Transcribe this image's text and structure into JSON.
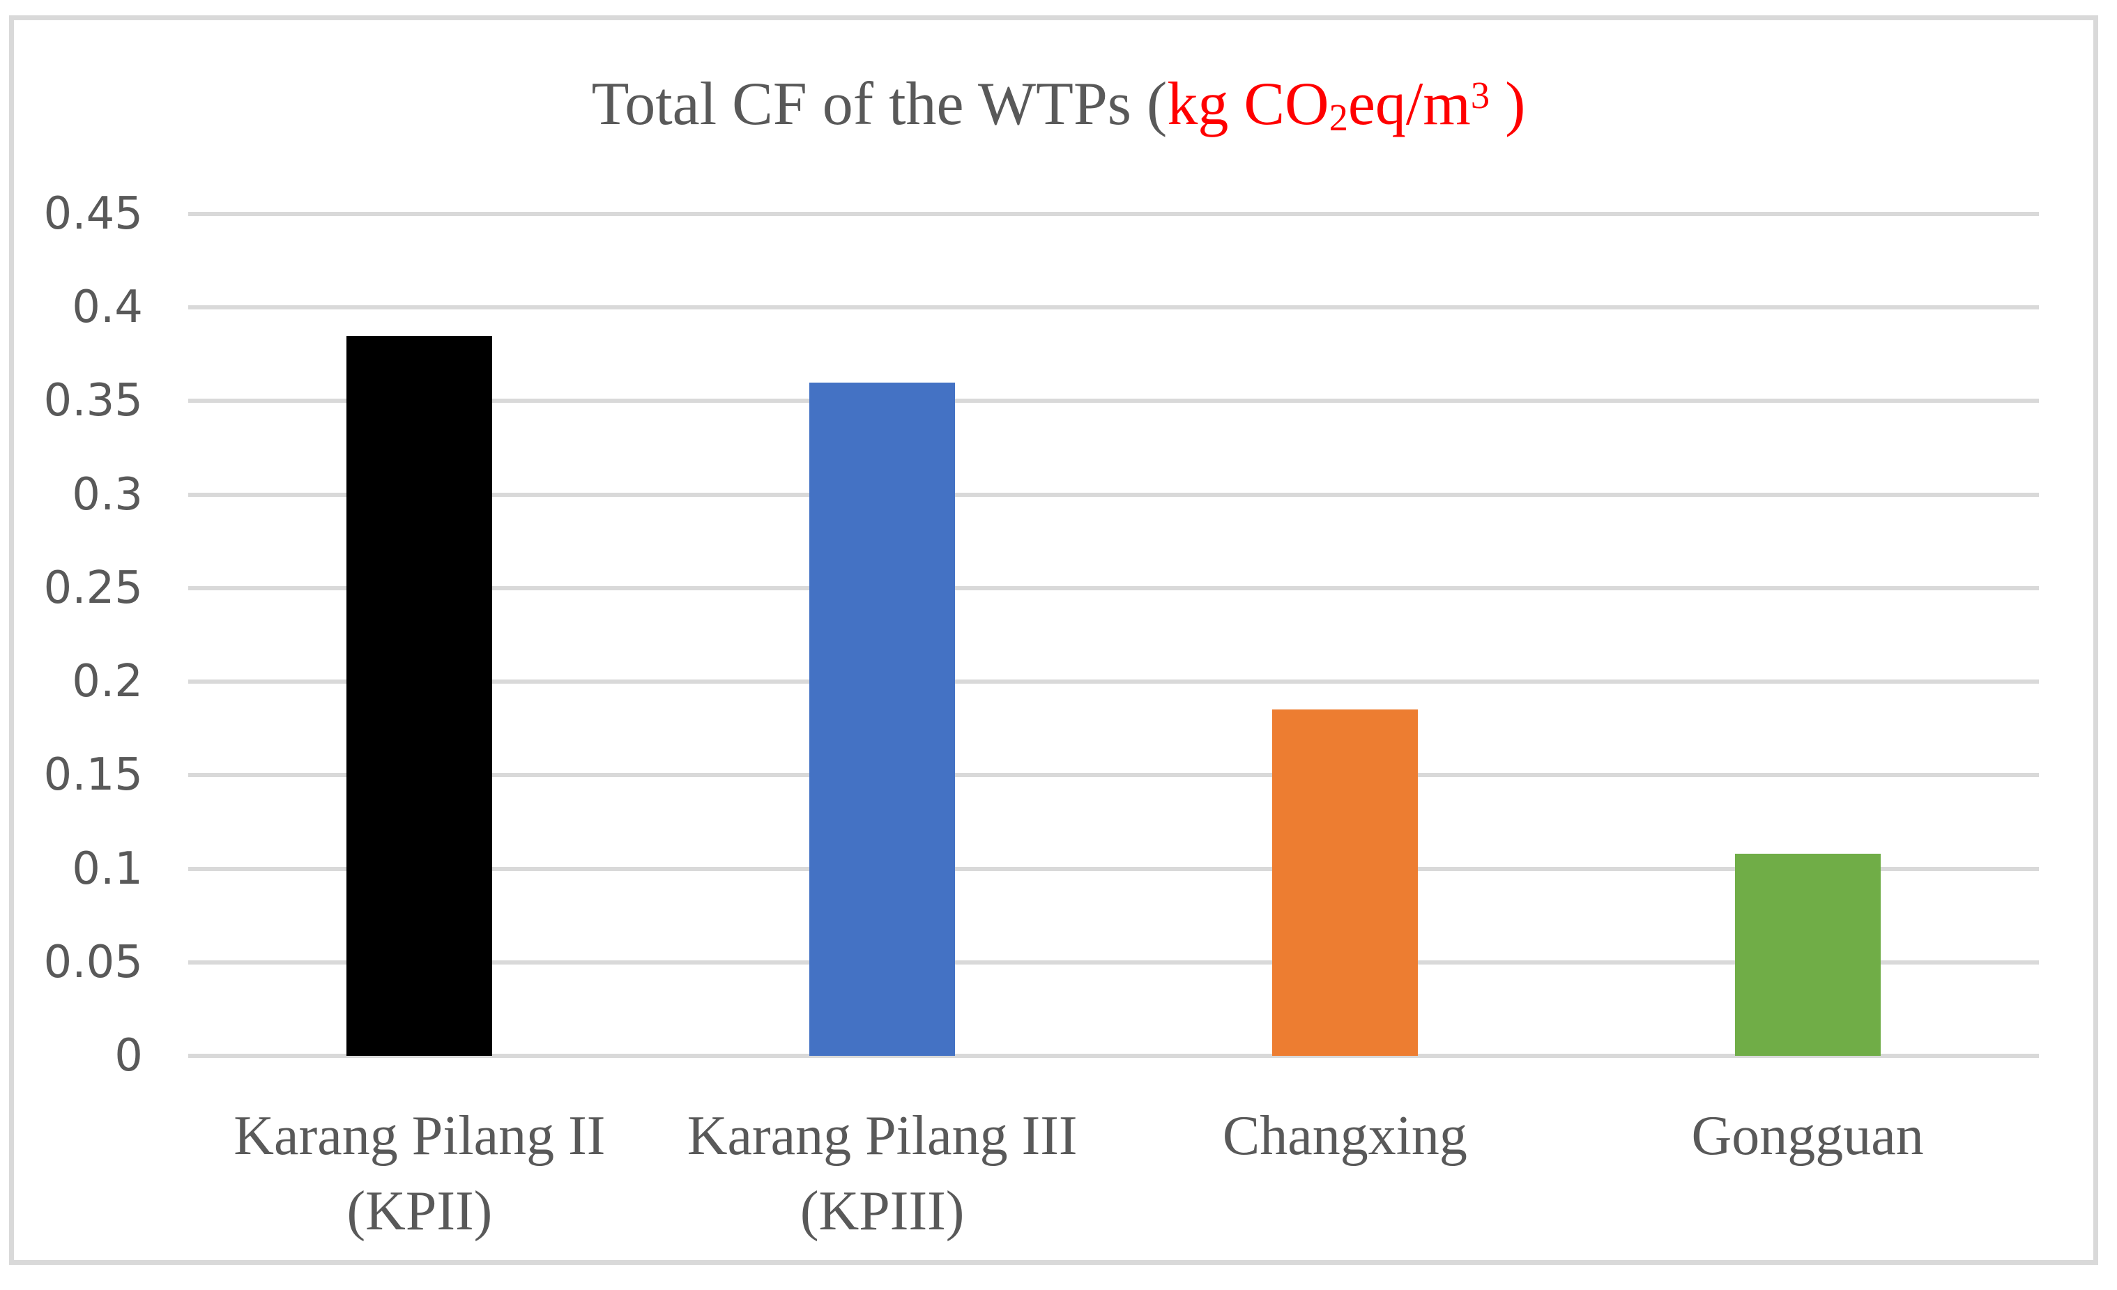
{
  "chart_data": {
    "type": "bar",
    "title": "Total CF of the WTPs (kg CO2eq/m3 )",
    "title_segments": {
      "label": "Total CF of the WTPs (",
      "unit_prefix": "kg CO",
      "unit_subscript": "2",
      "unit_middle": "eq/m",
      "unit_superscript": "3",
      "unit_close": " )"
    },
    "categories": [
      "Karang Pilang II\n(KPII)",
      "Karang Pilang III\n(KPIII)",
      "Changxing",
      "Gongguan"
    ],
    "values": [
      0.385,
      0.36,
      0.185,
      0.108
    ],
    "bar_colors": [
      "#000000",
      "#4472C4",
      "#ED7D31",
      "#70AD47"
    ],
    "ylim": [
      0,
      0.45
    ],
    "ytick_step": 0.05,
    "yticks": [
      0,
      0.05,
      0.1,
      0.15,
      0.2,
      0.25,
      0.3,
      0.35,
      0.4,
      0.45
    ],
    "ytick_labels": [
      "0",
      "0.05",
      "0.1",
      "0.15",
      "0.2",
      "0.25",
      "0.3",
      "0.35",
      "0.4",
      "0.45"
    ],
    "grid": true,
    "legend": "none",
    "xlabel": "",
    "ylabel": "",
    "colors": {
      "grid": "#D9D9D9",
      "frame_border": "#D9D9D9",
      "text": "#595959",
      "unit_text": "#FF0000",
      "background": "#FFFFFF"
    }
  }
}
